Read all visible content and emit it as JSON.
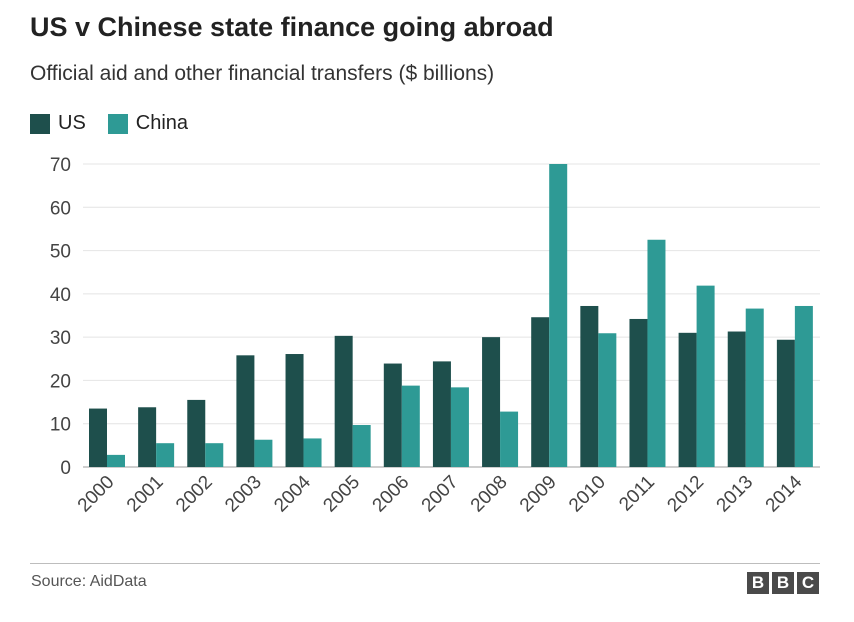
{
  "header": {
    "title": "US v Chinese state finance going abroad",
    "subtitle": "Official aid and other financial transfers ($ billions)"
  },
  "legend": {
    "items": [
      {
        "label": "US",
        "color": "#1e4f4c"
      },
      {
        "label": "China",
        "color": "#2e9a95"
      }
    ]
  },
  "footer": {
    "source": "Source: AidData",
    "logo_letters": [
      "B",
      "B",
      "C"
    ]
  },
  "chart_data": {
    "type": "bar",
    "title": "US v Chinese state finance going abroad",
    "subtitle": "Official aid and other financial transfers ($ billions)",
    "categories": [
      "2000",
      "2001",
      "2002",
      "2003",
      "2004",
      "2005",
      "2006",
      "2007",
      "2008",
      "2009",
      "2010",
      "2011",
      "2012",
      "2013",
      "2014"
    ],
    "series": [
      {
        "name": "US",
        "color": "#1e4f4c",
        "values": [
          13.5,
          13.8,
          15.5,
          25.8,
          26.1,
          30.3,
          23.9,
          24.4,
          30.0,
          34.6,
          37.2,
          34.2,
          31.0,
          31.3,
          29.4
        ]
      },
      {
        "name": "China",
        "color": "#2e9a95",
        "values": [
          2.8,
          5.5,
          5.5,
          6.3,
          6.6,
          9.7,
          18.8,
          18.4,
          12.8,
          70.0,
          30.9,
          52.5,
          41.9,
          36.6,
          37.2
        ]
      }
    ],
    "yticks": [
      0,
      10,
      20,
      30,
      40,
      50,
      60,
      70
    ],
    "ylim": [
      0,
      70
    ],
    "xlabel": "",
    "ylabel": "",
    "grid": true,
    "legend_position": "top-left"
  }
}
